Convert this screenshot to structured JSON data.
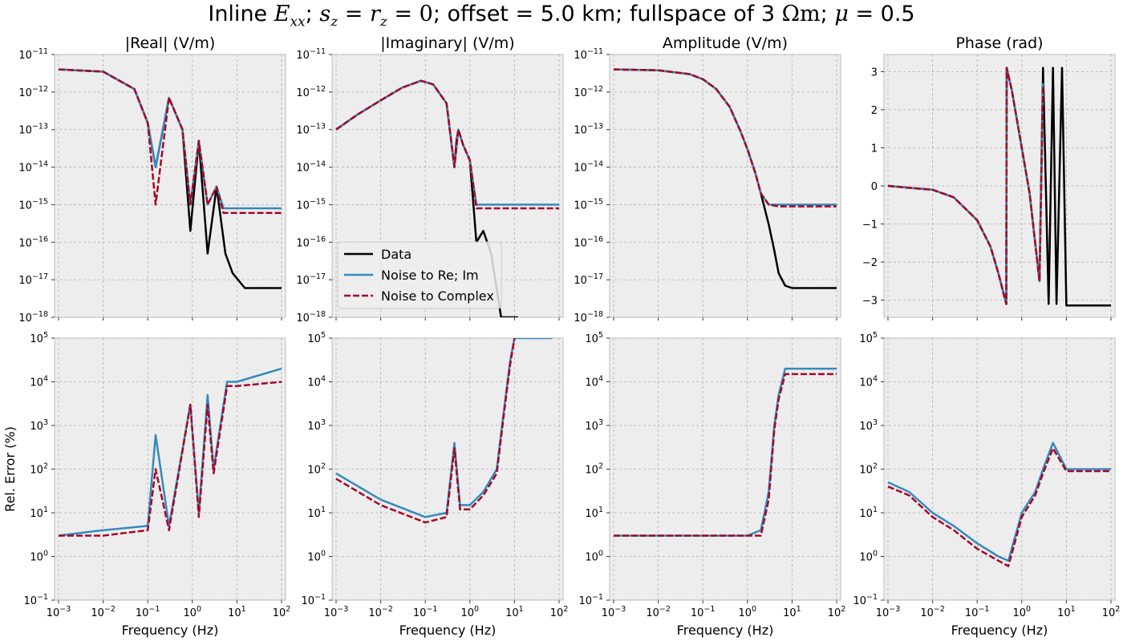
{
  "figure": {
    "title_parts": {
      "pre": "Inline ",
      "E": "E",
      "E_sub": "xx",
      "semi1": "; ",
      "s": "s",
      "s_sub": "z",
      "eq1": " = ",
      "r": "r",
      "r_sub": "z",
      "eq2": " = 0",
      "offset": "; offset",
      "eq3": " = ",
      "offset_val": "5.0 km; fullspace of 3 ",
      "ohm": "Ω",
      "m": "m",
      "semi2": "; ",
      "mu": "μ",
      "eq4": " = ",
      "mu_val": "0.5"
    }
  },
  "legend": {
    "location": "lower-left",
    "entries": [
      {
        "label": "Data",
        "color": "#000000",
        "style": "solid"
      },
      {
        "label": "Noise to Re; Im",
        "color": "#348ABD",
        "style": "solid"
      },
      {
        "label": "Noise to Complex",
        "color": "#A60628",
        "style": "dashed"
      }
    ]
  },
  "chart_data": [
    {
      "type": "line",
      "panel": "top-1",
      "title": "|Real| (V/m)",
      "xlabel": "",
      "ylabel": "",
      "xscale": "log",
      "yscale": "log",
      "xlim": [
        0.001,
        100
      ],
      "ylim": [
        1e-18,
        1e-11
      ],
      "xticklabels": [
        "10^-3",
        "10^-2",
        "10^-1",
        "10^0",
        "10^1",
        "10^2"
      ],
      "yticklabels": [
        "10^-18",
        "10^-17",
        "10^-16",
        "10^-15",
        "10^-14",
        "10^-13",
        "10^-12",
        "10^-11"
      ],
      "grid": true,
      "series": [
        {
          "name": "Data",
          "x": [
            0.001,
            0.01,
            0.05,
            0.1,
            0.15,
            0.3,
            0.6,
            0.9,
            1.4,
            2.2,
            3.5,
            5.5,
            8,
            15,
            50,
            100
          ],
          "y": [
            4e-12,
            3.5e-12,
            1.2e-12,
            1.5e-13,
            1e-14,
            7e-13,
            1e-13,
            2e-16,
            5e-14,
            5e-17,
            3e-15,
            5e-17,
            1.5e-17,
            6e-18,
            6e-18,
            6e-18
          ]
        },
        {
          "name": "Noise to Re; Im",
          "x": [
            0.001,
            0.01,
            0.05,
            0.1,
            0.15,
            0.3,
            0.6,
            0.9,
            1.4,
            2.2,
            3.5,
            5,
            10,
            100
          ],
          "y": [
            4e-12,
            3.5e-12,
            1.2e-12,
            1.5e-13,
            1e-14,
            7e-13,
            1e-13,
            1e-15,
            5e-14,
            1e-15,
            3e-15,
            8e-16,
            8e-16,
            8e-16
          ]
        },
        {
          "name": "Noise to Complex",
          "x": [
            0.001,
            0.01,
            0.05,
            0.1,
            0.15,
            0.3,
            0.6,
            0.9,
            1.4,
            2.2,
            3.5,
            5,
            10,
            100
          ],
          "y": [
            4e-12,
            3.5e-12,
            1.2e-12,
            1.5e-13,
            1e-15,
            7e-13,
            1e-13,
            1e-15,
            5e-14,
            1e-15,
            3e-15,
            6e-16,
            6e-16,
            6e-16
          ]
        }
      ]
    },
    {
      "type": "line",
      "panel": "top-2",
      "title": "|Imaginary| (V/m)",
      "xlabel": "",
      "ylabel": "",
      "xscale": "log",
      "yscale": "log",
      "xlim": [
        0.001,
        100
      ],
      "ylim": [
        1e-18,
        1e-11
      ],
      "xticklabels": [
        "10^-3",
        "10^-2",
        "10^-1",
        "10^0",
        "10^1",
        "10^2"
      ],
      "yticklabels": [
        "10^-18",
        "10^-17",
        "10^-16",
        "10^-15",
        "10^-14",
        "10^-13",
        "10^-12",
        "10^-11"
      ],
      "grid": true,
      "series": [
        {
          "name": "Data",
          "x": [
            0.001,
            0.003,
            0.01,
            0.03,
            0.08,
            0.15,
            0.3,
            0.45,
            0.5,
            0.55,
            0.7,
            1,
            1.4,
            2,
            3,
            5,
            8,
            12
          ],
          "y": [
            1e-13,
            2.5e-13,
            6e-13,
            1.3e-12,
            2e-12,
            1.6e-12,
            5e-13,
            1e-14,
            5e-14,
            1e-13,
            4e-14,
            1.5e-14,
            1e-16,
            2e-16,
            5e-17,
            1e-18,
            1e-18,
            1e-18
          ]
        },
        {
          "name": "Noise to Re; Im",
          "x": [
            0.001,
            0.003,
            0.01,
            0.03,
            0.08,
            0.15,
            0.3,
            0.45,
            0.55,
            0.7,
            1,
            1.4,
            2,
            10,
            100
          ],
          "y": [
            1e-13,
            2.5e-13,
            6e-13,
            1.3e-12,
            2e-12,
            1.6e-12,
            5e-13,
            1e-14,
            1e-13,
            4e-14,
            1.5e-14,
            1e-15,
            1e-15,
            1e-15,
            1e-15
          ]
        },
        {
          "name": "Noise to Complex",
          "x": [
            0.001,
            0.003,
            0.01,
            0.03,
            0.08,
            0.15,
            0.3,
            0.45,
            0.55,
            0.7,
            1,
            1.4,
            2,
            10,
            100
          ],
          "y": [
            1e-13,
            2.5e-13,
            6e-13,
            1.3e-12,
            2e-12,
            1.6e-12,
            5e-13,
            1e-14,
            1e-13,
            4e-14,
            1.5e-14,
            8e-16,
            8e-16,
            8e-16,
            8e-16
          ]
        }
      ]
    },
    {
      "type": "line",
      "panel": "top-3",
      "title": "Amplitude (V/m)",
      "xlabel": "",
      "ylabel": "",
      "xscale": "log",
      "yscale": "log",
      "xlim": [
        0.001,
        100
      ],
      "ylim": [
        1e-18,
        1e-11
      ],
      "xticklabels": [
        "10^-3",
        "10^-2",
        "10^-1",
        "10^0",
        "10^1",
        "10^2"
      ],
      "yticklabels": [
        "10^-18",
        "10^-17",
        "10^-16",
        "10^-15",
        "10^-14",
        "10^-13",
        "10^-12",
        "10^-11"
      ],
      "grid": true,
      "series": [
        {
          "name": "Data",
          "x": [
            0.001,
            0.01,
            0.05,
            0.1,
            0.2,
            0.4,
            0.7,
            1,
            1.5,
            2,
            3,
            4,
            5,
            7,
            10,
            20,
            100
          ],
          "y": [
            4e-12,
            3.8e-12,
            3e-12,
            2.2e-12,
            1.2e-12,
            4e-13,
            9e-14,
            3e-14,
            7e-15,
            2e-15,
            3e-16,
            6e-17,
            1.5e-17,
            7e-18,
            6e-18,
            6e-18,
            6e-18
          ]
        },
        {
          "name": "Noise to Re; Im",
          "x": [
            0.001,
            0.01,
            0.05,
            0.1,
            0.2,
            0.4,
            0.7,
            1,
            1.5,
            2,
            3,
            5,
            10,
            100
          ],
          "y": [
            4e-12,
            3.8e-12,
            3e-12,
            2.2e-12,
            1.2e-12,
            4e-13,
            9e-14,
            3e-14,
            7e-15,
            2e-15,
            1e-15,
            1e-15,
            1e-15,
            1e-15
          ]
        },
        {
          "name": "Noise to Complex",
          "x": [
            0.001,
            0.01,
            0.05,
            0.1,
            0.2,
            0.4,
            0.7,
            1,
            1.5,
            2,
            3,
            5,
            10,
            100
          ],
          "y": [
            4e-12,
            3.8e-12,
            3e-12,
            2.2e-12,
            1.2e-12,
            4e-13,
            9e-14,
            3e-14,
            7e-15,
            2e-15,
            1e-15,
            9e-16,
            9e-16,
            9e-16
          ]
        }
      ]
    },
    {
      "type": "line",
      "panel": "top-4",
      "title": "Phase (rad)",
      "xlabel": "",
      "ylabel": "",
      "xscale": "log",
      "yscale": "linear",
      "xlim": [
        0.001,
        100
      ],
      "ylim": [
        -3.45,
        3.45
      ],
      "xticklabels": [
        "10^-3",
        "10^-2",
        "10^-1",
        "10^0",
        "10^1",
        "10^2"
      ],
      "yticklabels": [
        "−3",
        "−2",
        "−1",
        "0",
        "1",
        "2",
        "3"
      ],
      "grid": true,
      "series": [
        {
          "name": "Data",
          "x": [
            0.001,
            0.003,
            0.01,
            0.03,
            0.1,
            0.2,
            0.3,
            0.45,
            0.46,
            0.6,
            1,
            1.5,
            2.5,
            3,
            4,
            5,
            6,
            8,
            10,
            100
          ],
          "y": [
            0,
            -0.05,
            -0.1,
            -0.3,
            -0.9,
            -1.6,
            -2.3,
            -3.1,
            3.1,
            2.5,
            1,
            -0.2,
            -2.5,
            3.1,
            -3.1,
            3.1,
            -3.1,
            3.1,
            -3.14,
            -3.14
          ]
        },
        {
          "name": "Noise to Re; Im",
          "x": [
            0.001,
            0.003,
            0.01,
            0.03,
            0.1,
            0.2,
            0.3,
            0.45,
            0.46,
            0.6,
            1,
            1.5,
            2.5,
            3
          ],
          "y": [
            0,
            -0.05,
            -0.1,
            -0.3,
            -0.9,
            -1.6,
            -2.3,
            -3.1,
            3.1,
            2.5,
            1,
            -0.2,
            -2.5,
            2.7
          ]
        },
        {
          "name": "Noise to Complex",
          "x": [
            0.001,
            0.003,
            0.01,
            0.03,
            0.1,
            0.2,
            0.3,
            0.45,
            0.46,
            0.6,
            1,
            1.5,
            2.5,
            3
          ],
          "y": [
            0,
            -0.05,
            -0.1,
            -0.3,
            -0.9,
            -1.6,
            -2.3,
            -3.1,
            3.1,
            2.5,
            1,
            -0.2,
            -2.5,
            2.6
          ]
        }
      ]
    },
    {
      "type": "line",
      "panel": "bottom-1",
      "title": "",
      "xlabel": "Frequency (Hz)",
      "ylabel": "Rel. Error (%)",
      "xscale": "log",
      "yscale": "log",
      "xlim": [
        0.001,
        100
      ],
      "ylim": [
        0.1,
        100000
      ],
      "xticklabels": [
        "10^-3",
        "10^-2",
        "10^-1",
        "10^0",
        "10^1",
        "10^2"
      ],
      "yticklabels": [
        "10^-1",
        "10^0",
        "10^1",
        "10^2",
        "10^3",
        "10^4",
        "10^5"
      ],
      "grid": true,
      "series": [
        {
          "name": "Noise to Re; Im",
          "x": [
            0.001,
            0.01,
            0.1,
            0.15,
            0.3,
            0.9,
            1.4,
            2.2,
            3,
            6,
            10,
            100
          ],
          "y": [
            3,
            4,
            5,
            600,
            5,
            3000,
            10,
            5000,
            100,
            10000,
            10000,
            20000
          ]
        },
        {
          "name": "Noise to Complex",
          "x": [
            0.001,
            0.01,
            0.1,
            0.15,
            0.3,
            0.9,
            1.4,
            2.2,
            3,
            6,
            10,
            100
          ],
          "y": [
            3,
            3,
            4,
            100,
            4,
            3000,
            8,
            3000,
            80,
            8000,
            8000,
            10000
          ]
        }
      ]
    },
    {
      "type": "line",
      "panel": "bottom-2",
      "title": "",
      "xlabel": "Frequency (Hz)",
      "ylabel": "",
      "xscale": "log",
      "yscale": "log",
      "xlim": [
        0.001,
        100
      ],
      "ylim": [
        0.1,
        100000
      ],
      "xticklabels": [
        "10^-3",
        "10^-2",
        "10^-1",
        "10^0",
        "10^1",
        "10^2"
      ],
      "yticklabels": [
        "10^-1",
        "10^0",
        "10^1",
        "10^2",
        "10^3",
        "10^4",
        "10^5"
      ],
      "grid": true,
      "series": [
        {
          "name": "Noise to Re; Im",
          "x": [
            0.001,
            0.01,
            0.1,
            0.3,
            0.45,
            0.6,
            1,
            2,
            4,
            6,
            8,
            10,
            70
          ],
          "y": [
            80,
            20,
            8,
            10,
            400,
            15,
            15,
            30,
            100,
            3000,
            30000,
            100000,
            100000
          ]
        },
        {
          "name": "Noise to Complex",
          "x": [
            0.001,
            0.01,
            0.1,
            0.3,
            0.45,
            0.6,
            1,
            2,
            4,
            6,
            8,
            10
          ],
          "y": [
            60,
            15,
            6,
            8,
            300,
            12,
            12,
            25,
            80,
            2500,
            25000,
            100000
          ]
        }
      ]
    },
    {
      "type": "line",
      "panel": "bottom-3",
      "title": "",
      "xlabel": "Frequency (Hz)",
      "ylabel": "",
      "xscale": "log",
      "yscale": "log",
      "xlim": [
        0.001,
        100
      ],
      "ylim": [
        0.1,
        100000
      ],
      "xticklabels": [
        "10^-3",
        "10^-2",
        "10^-1",
        "10^0",
        "10^1",
        "10^2"
      ],
      "yticklabels": [
        "10^-1",
        "10^0",
        "10^1",
        "10^2",
        "10^3",
        "10^4",
        "10^5"
      ],
      "grid": true,
      "series": [
        {
          "name": "Noise to Re; Im",
          "x": [
            0.001,
            0.01,
            0.1,
            0.5,
            1,
            2,
            3,
            4,
            5,
            7,
            10,
            100
          ],
          "y": [
            3,
            3,
            3,
            3,
            3,
            4,
            30,
            1000,
            5000,
            20000,
            20000,
            20000
          ]
        },
        {
          "name": "Noise to Complex",
          "x": [
            0.001,
            0.01,
            0.1,
            0.5,
            1,
            2,
            3,
            4,
            5,
            7,
            10,
            100
          ],
          "y": [
            3,
            3,
            3,
            3,
            3,
            3,
            20,
            800,
            4000,
            15000,
            15000,
            15000
          ]
        }
      ]
    },
    {
      "type": "line",
      "panel": "bottom-4",
      "title": "",
      "xlabel": "Frequency (Hz)",
      "ylabel": "",
      "xscale": "log",
      "yscale": "log",
      "xlim": [
        0.001,
        100
      ],
      "ylim": [
        0.1,
        100000
      ],
      "xticklabels": [
        "10^-3",
        "10^-2",
        "10^-1",
        "10^0",
        "10^1",
        "10^2"
      ],
      "yticklabels": [
        "10^-1",
        "10^0",
        "10^1",
        "10^2",
        "10^3",
        "10^4",
        "10^5"
      ],
      "grid": true,
      "series": [
        {
          "name": "Noise to Re; Im",
          "x": [
            0.001,
            0.003,
            0.01,
            0.03,
            0.1,
            0.3,
            0.5,
            1,
            2,
            3,
            5,
            10,
            100
          ],
          "y": [
            50,
            30,
            10,
            5,
            2,
            1,
            0.8,
            10,
            30,
            100,
            400,
            100,
            100
          ]
        },
        {
          "name": "Noise to Complex",
          "x": [
            0.001,
            0.003,
            0.01,
            0.03,
            0.1,
            0.3,
            0.5,
            1,
            2,
            3,
            5,
            10,
            100
          ],
          "y": [
            40,
            25,
            8,
            4,
            1.5,
            0.8,
            0.6,
            8,
            25,
            80,
            300,
            90,
            90
          ]
        }
      ]
    }
  ]
}
